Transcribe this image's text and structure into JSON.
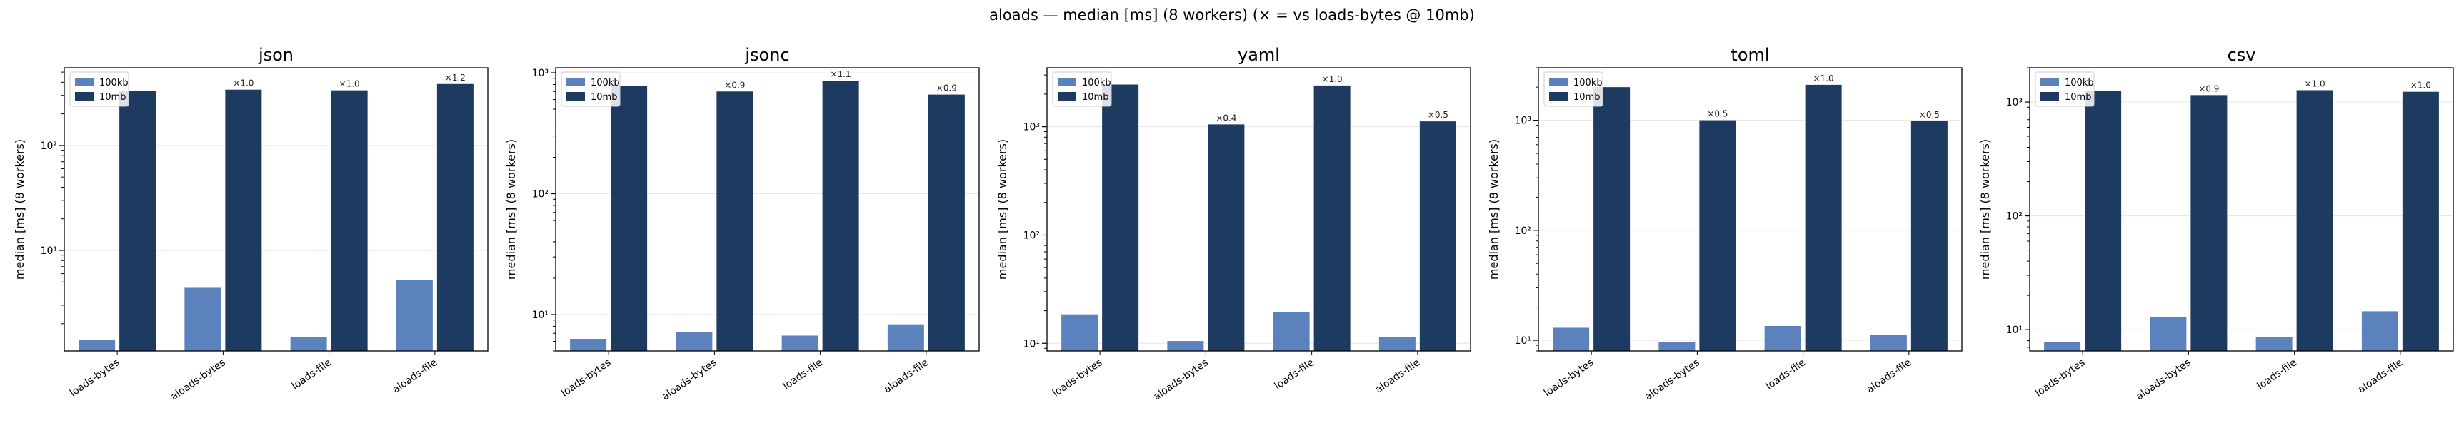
{
  "figure": {
    "title": "aloads — median [ms] (8 workers) (× = vs loads-bytes @ 10mb)"
  },
  "colors": {
    "small": "#5b82bc",
    "large": "#1d3a61",
    "grid": "#e6e6e6",
    "axis": "#000000"
  },
  "chart_data": [
    {
      "type": "bar",
      "title": "json",
      "ylabel": "median [ms] (8 workers)",
      "yscale": "log",
      "ylim": [
        1.1,
        550
      ],
      "categories": [
        "loads-bytes",
        "aloads-bytes",
        "loads-file",
        "aloads-file"
      ],
      "series": [
        {
          "name": "100kb",
          "values": [
            1.4,
            4.4,
            1.5,
            5.2
          ]
        },
        {
          "name": "10mb",
          "values": [
            330,
            340,
            335,
            385
          ]
        }
      ],
      "ratio_labels": [
        "",
        "×1.0",
        "×1.0",
        "×1.2"
      ],
      "yticks": [
        {
          "value": 10,
          "label": "10¹"
        },
        {
          "value": 100,
          "label": "10²"
        }
      ],
      "legend": "top-left",
      "grid": true
    },
    {
      "type": "bar",
      "title": "jsonc",
      "ylabel": "median [ms] (8 workers)",
      "yscale": "log",
      "ylim": [
        5,
        1100
      ],
      "categories": [
        "loads-bytes",
        "aloads-bytes",
        "loads-file",
        "aloads-file"
      ],
      "series": [
        {
          "name": "100kb",
          "values": [
            6.3,
            7.2,
            6.7,
            8.3
          ]
        },
        {
          "name": "10mb",
          "values": [
            780,
            700,
            860,
            660
          ]
        }
      ],
      "ratio_labels": [
        "",
        "×0.9",
        "×1.1",
        "×0.9"
      ],
      "yticks": [
        {
          "value": 10,
          "label": "10¹"
        },
        {
          "value": 100,
          "label": "10²"
        },
        {
          "value": 1000,
          "label": "10³"
        }
      ],
      "legend": "top-left",
      "grid": true
    },
    {
      "type": "bar",
      "title": "yaml",
      "ylabel": "median [ms] (8 workers)",
      "yscale": "log",
      "ylim": [
        8.5,
        3500
      ],
      "categories": [
        "loads-bytes",
        "aloads-bytes",
        "loads-file",
        "aloads-file"
      ],
      "series": [
        {
          "name": "100kb",
          "values": [
            18.5,
            10.5,
            19.5,
            11.5
          ]
        },
        {
          "name": "10mb",
          "values": [
            2450,
            1050,
            2400,
            1120
          ]
        }
      ],
      "ratio_labels": [
        "",
        "×0.4",
        "×1.0",
        "×0.5"
      ],
      "yticks": [
        {
          "value": 10,
          "label": "10¹"
        },
        {
          "value": 100,
          "label": "10²"
        },
        {
          "value": 1000,
          "label": "10³"
        }
      ],
      "legend": "top-left",
      "grid": true
    },
    {
      "type": "bar",
      "title": "toml",
      "ylabel": "median [ms] (8 workers)",
      "yscale": "log",
      "ylim": [
        8,
        3000
      ],
      "categories": [
        "loads-bytes",
        "aloads-bytes",
        "loads-file",
        "aloads-file"
      ],
      "series": [
        {
          "name": "100kb",
          "values": [
            13,
            9.6,
            13.5,
            11.2
          ]
        },
        {
          "name": "10mb",
          "values": [
            2000,
            1000,
            2100,
            980
          ]
        }
      ],
      "ratio_labels": [
        "",
        "×0.5",
        "×1.0",
        "×0.5"
      ],
      "yticks": [
        {
          "value": 10,
          "label": "10¹"
        },
        {
          "value": 100,
          "label": "10²"
        },
        {
          "value": 1000,
          "label": "10³"
        }
      ],
      "legend": "top-left",
      "grid": true
    },
    {
      "type": "bar",
      "title": "csv",
      "ylabel": "median [ms] (8 workers)",
      "yscale": "log",
      "ylim": [
        6.5,
        2000
      ],
      "categories": [
        "loads-bytes",
        "aloads-bytes",
        "loads-file",
        "aloads-file"
      ],
      "series": [
        {
          "name": "100kb",
          "values": [
            7.8,
            13,
            8.6,
            14.5
          ]
        },
        {
          "name": "10mb",
          "values": [
            1250,
            1150,
            1270,
            1230
          ]
        }
      ],
      "ratio_labels": [
        "",
        "×0.9",
        "×1.0",
        "×1.0"
      ],
      "yticks": [
        {
          "value": 10,
          "label": "10¹"
        },
        {
          "value": 100,
          "label": "10²"
        },
        {
          "value": 1000,
          "label": "10³"
        }
      ],
      "legend": "top-left",
      "grid": true
    }
  ]
}
